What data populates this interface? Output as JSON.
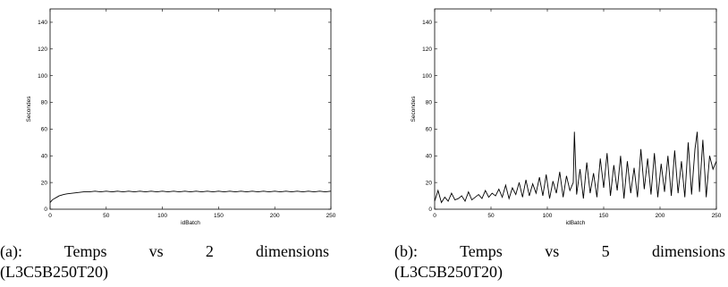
{
  "chart_data": [
    {
      "type": "line",
      "xlabel": "idBatch",
      "ylabel": "Secondes",
      "xlim": [
        0,
        250
      ],
      "ylim": [
        0,
        150
      ],
      "xticks": [
        "0",
        "50",
        "100",
        "150",
        "200",
        "250"
      ],
      "yticks": [
        "0",
        "20",
        "40",
        "60",
        "80",
        "100",
        "120",
        "140"
      ],
      "grid": false,
      "caption_line1": "(a):  Temps  vs  2  dimensions",
      "caption_line2": "(L3C5B250T20)",
      "series": [
        {
          "x": [
            0,
            2,
            4,
            6,
            8,
            10,
            12,
            15,
            20,
            25,
            30,
            35,
            40,
            45,
            50,
            55,
            60,
            65,
            70,
            75,
            80,
            85,
            90,
            95,
            100,
            105,
            110,
            115,
            120,
            125,
            130,
            135,
            140,
            145,
            150,
            155,
            160,
            165,
            170,
            175,
            180,
            185,
            190,
            195,
            200,
            205,
            210,
            215,
            220,
            225,
            230,
            235,
            240,
            245,
            250
          ],
          "values": [
            5,
            7,
            8,
            9,
            10,
            10.5,
            11,
            11.5,
            12,
            12.5,
            13,
            13,
            13.5,
            13,
            13.5,
            13,
            13.5,
            13,
            13.5,
            13,
            13.5,
            13,
            13.5,
            13,
            13.5,
            13,
            13.5,
            13,
            13.5,
            13,
            13.5,
            13,
            13.5,
            13,
            13.5,
            13,
            13.5,
            13,
            13.5,
            13,
            13.5,
            13,
            13.5,
            13,
            13.5,
            13,
            13.5,
            13,
            13.5,
            13,
            13.5,
            13,
            13.5,
            13,
            13.5
          ]
        }
      ]
    },
    {
      "type": "line",
      "xlabel": "idBatch",
      "ylabel": "Secondes",
      "xlim": [
        0,
        250
      ],
      "ylim": [
        0,
        150
      ],
      "xticks": [
        "0",
        "50",
        "100",
        "150",
        "200",
        "250"
      ],
      "yticks": [
        "0",
        "20",
        "40",
        "60",
        "80",
        "100",
        "120",
        "140"
      ],
      "grid": false,
      "caption_line1": "(b):  Temps  vs  5  dimensions",
      "caption_line2": "(L3C5B250T20)",
      "series": [
        {
          "x": [
            0,
            3,
            6,
            9,
            12,
            15,
            18,
            21,
            24,
            27,
            30,
            33,
            36,
            39,
            42,
            45,
            48,
            51,
            54,
            57,
            60,
            63,
            66,
            69,
            72,
            75,
            78,
            81,
            84,
            87,
            90,
            93,
            96,
            99,
            102,
            105,
            108,
            111,
            114,
            117,
            120,
            123,
            124,
            126,
            129,
            132,
            135,
            138,
            141,
            144,
            147,
            150,
            153,
            156,
            159,
            162,
            165,
            168,
            171,
            174,
            177,
            180,
            183,
            186,
            189,
            192,
            195,
            198,
            201,
            204,
            207,
            210,
            213,
            216,
            219,
            222,
            225,
            228,
            231,
            233,
            235,
            238,
            241,
            244,
            247,
            250
          ],
          "values": [
            6,
            14,
            5,
            9,
            6,
            12,
            7,
            8,
            10,
            6,
            13,
            7,
            9,
            11,
            8,
            14,
            9,
            12,
            10,
            15,
            9,
            18,
            8,
            16,
            11,
            20,
            9,
            22,
            10,
            19,
            12,
            24,
            10,
            26,
            8,
            21,
            12,
            28,
            9,
            25,
            14,
            20,
            58,
            11,
            30,
            8,
            35,
            12,
            27,
            9,
            38,
            16,
            42,
            10,
            33,
            14,
            40,
            8,
            36,
            12,
            31,
            9,
            45,
            15,
            38,
            11,
            42,
            9,
            34,
            13,
            40,
            10,
            44,
            12,
            36,
            9,
            50,
            11,
            45,
            58,
            13,
            52,
            9,
            40,
            30,
            36
          ]
        }
      ]
    }
  ]
}
